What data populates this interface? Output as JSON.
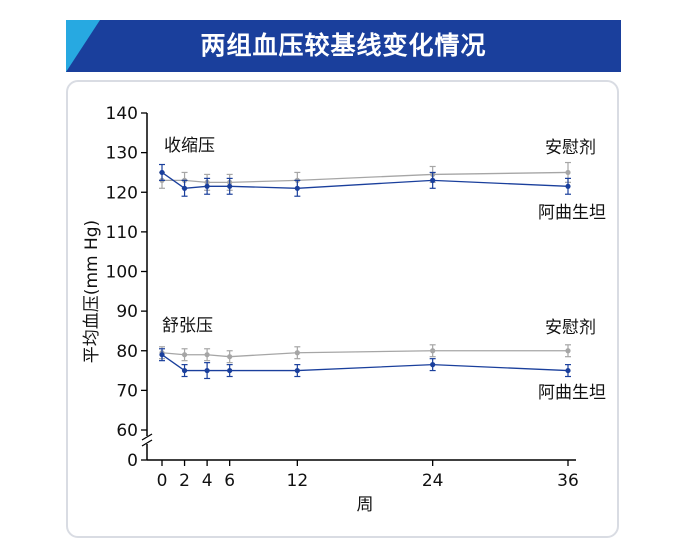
{
  "title": "两组血压较基线变化情况",
  "chart_data": {
    "type": "line",
    "ylabel": "平均血压(mm Hg)",
    "xlabel": "周",
    "x_ticks": [
      0,
      2,
      4,
      6,
      12,
      24,
      36
    ],
    "y_ticks": [
      0,
      60,
      70,
      80,
      90,
      100,
      110,
      120,
      130,
      140
    ],
    "ylim": [
      60,
      140
    ],
    "axis_break": true,
    "grid": false,
    "groups": [
      {
        "name": "收缩压",
        "series": [
          {
            "name": "安慰剂",
            "color": "#a6a6a6",
            "x": [
              0,
              2,
              4,
              6,
              12,
              24,
              36
            ],
            "y": [
              123,
              123,
              122.5,
              122.5,
              123,
              124.5,
              125
            ],
            "error": [
              2,
              2,
              2,
              2,
              2,
              2,
              2.5
            ]
          },
          {
            "name": "阿曲生坦",
            "color": "#1a3f9c",
            "x": [
              0,
              2,
              4,
              6,
              12,
              24,
              36
            ],
            "y": [
              125,
              121,
              121.5,
              121.5,
              121,
              123,
              121.5
            ],
            "error": [
              2,
              2,
              2,
              2,
              2,
              2,
              2
            ]
          }
        ]
      },
      {
        "name": "舒张压",
        "series": [
          {
            "name": "安慰剂",
            "color": "#a6a6a6",
            "x": [
              0,
              2,
              4,
              6,
              12,
              24,
              36
            ],
            "y": [
              79.5,
              79,
              79,
              78.5,
              79.5,
              80,
              80
            ],
            "error": [
              1.5,
              1.5,
              1.5,
              1.5,
              1.5,
              1.5,
              1.5
            ]
          },
          {
            "name": "阿曲生坦",
            "color": "#1a3f9c",
            "x": [
              0,
              2,
              4,
              6,
              12,
              24,
              36
            ],
            "y": [
              79,
              75,
              75,
              75,
              75,
              76.5,
              75
            ],
            "error": [
              1.5,
              1.5,
              2,
              1.5,
              1.5,
              1.5,
              1.5
            ]
          }
        ]
      }
    ]
  }
}
